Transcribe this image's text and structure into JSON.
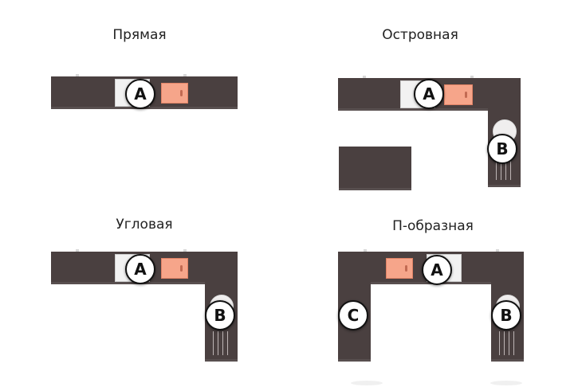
{
  "layouts": [
    {
      "title": "Прямая",
      "labels": [
        "A"
      ]
    },
    {
      "title": "Островная",
      "labels": [
        "A",
        "B"
      ]
    },
    {
      "title": "Угловая",
      "labels": [
        "A",
        "B"
      ]
    },
    {
      "title": "П-образная",
      "labels": [
        "A",
        "B",
        "C"
      ]
    }
  ],
  "colors": {
    "counter": "#4a4040",
    "board": "#f6a58a",
    "sink": "#f2f2f2",
    "badge_border": "#111111"
  }
}
